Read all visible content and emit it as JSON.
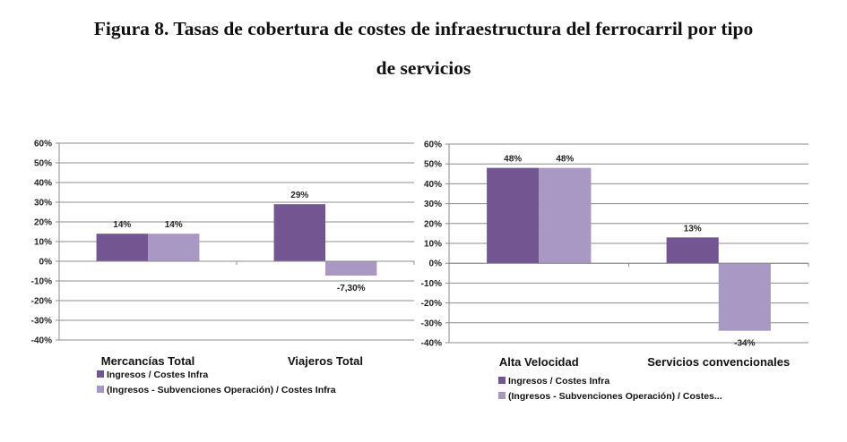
{
  "title": {
    "line1": "Figura 8. Tasas de cobertura de costes de infraestructura del ferrocarril por tipo",
    "line2": "de servicios"
  },
  "colors": {
    "series1": "#735591",
    "series2": "#a898c3",
    "grid": "#8c8c8c",
    "axis": "#8c8c8c"
  },
  "chart_data": [
    {
      "type": "bar",
      "categories": [
        "Mercancías Total",
        "Viajeros Total"
      ],
      "series": [
        {
          "name": "Ingresos / Costes Infra",
          "values": [
            14,
            29
          ],
          "labels": [
            "14%",
            "29%"
          ]
        },
        {
          "name": "(Ingresos - Subvenciones Operación) / Costes Infra",
          "values": [
            14,
            -7.3
          ],
          "labels": [
            "14%",
            "-7,30%"
          ]
        }
      ],
      "ylim": [
        -40,
        60
      ],
      "yticks": [
        "-40%",
        "-30%",
        "-20%",
        "-10%",
        "0%",
        "10%",
        "20%",
        "30%",
        "40%",
        "50%",
        "60%"
      ],
      "legend": "bottom",
      "grid": true
    },
    {
      "type": "bar",
      "categories": [
        "Alta Velocidad",
        "Servicios convencionales"
      ],
      "series": [
        {
          "name": "Ingresos / Costes Infra",
          "values": [
            48,
            13
          ],
          "labels": [
            "48%",
            "13%"
          ]
        },
        {
          "name": "(Ingresos - Subvenciones Operación) / Costes...",
          "values": [
            48,
            -34
          ],
          "labels": [
            "48%",
            "-34%"
          ]
        }
      ],
      "ylim": [
        -40,
        60
      ],
      "yticks": [
        "-40%",
        "-30%",
        "-20%",
        "-10%",
        "0%",
        "10%",
        "20%",
        "30%",
        "40%",
        "50%",
        "60%"
      ],
      "legend": "bottom",
      "grid": true
    }
  ]
}
